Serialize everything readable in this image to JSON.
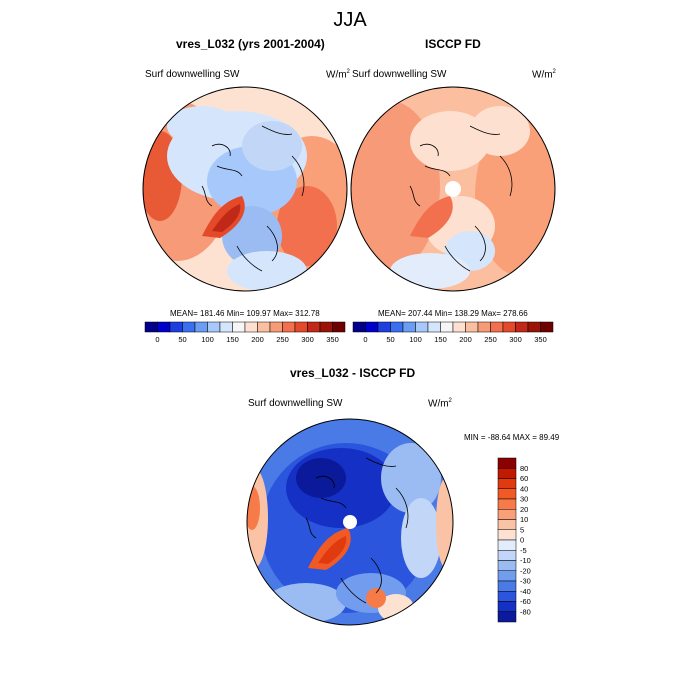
{
  "figure": {
    "season": "JJA",
    "units_base": "W/m",
    "units_exp": "2"
  },
  "panels": {
    "model": {
      "title": "vres_L032 (yrs 2001-2004)",
      "variable": "Surf downwelling SW",
      "stats_text": "MEAN= 181.46  Min= 109.97  Max= 312.78"
    },
    "obs": {
      "title": "ISCCP FD",
      "variable": "Surf downwelling SW",
      "stats_text": "MEAN= 207.44  Min= 138.29  Max= 278.66"
    },
    "diff": {
      "title": "vres_L032 - ISCCP FD",
      "variable": "Surf downwelling SW",
      "stats_text": "MIN = -88.64 MAX =  89.49"
    }
  },
  "chart_data": [
    {
      "type": "heatmap",
      "title": "vres_L032 (yrs 2001-2004)",
      "projection": "north polar stereographic",
      "variable": "Surf downwelling SW",
      "units": "W/m2",
      "stats": {
        "mean": 181.46,
        "min": 109.97,
        "max": 312.78
      },
      "colorbar": {
        "levels": [
          0,
          25,
          50,
          75,
          100,
          125,
          150,
          175,
          200,
          225,
          250,
          275,
          300,
          325,
          350
        ],
        "tick_labels": [
          "0",
          "50",
          "100",
          "150",
          "200",
          "250",
          "300",
          "350"
        ],
        "colors": [
          "#00008b",
          "#0000cd",
          "#1e3fe0",
          "#3a6ff0",
          "#6b9df5",
          "#a6c8fa",
          "#d5e6fc",
          "#f6f6f6",
          "#fde0d0",
          "#fbbfa0",
          "#f79a78",
          "#f2704d",
          "#e44a2a",
          "#c02818",
          "#9a1208",
          "#6f0000"
        ]
      }
    },
    {
      "type": "heatmap",
      "title": "ISCCP FD",
      "projection": "north polar stereographic",
      "variable": "Surf downwelling SW",
      "units": "W/m2",
      "stats": {
        "mean": 207.44,
        "min": 138.29,
        "max": 278.66
      },
      "colorbar": {
        "levels": [
          0,
          25,
          50,
          75,
          100,
          125,
          150,
          175,
          200,
          225,
          250,
          275,
          300,
          325,
          350
        ],
        "tick_labels": [
          "0",
          "50",
          "100",
          "150",
          "200",
          "250",
          "300",
          "350"
        ],
        "colors": [
          "#00008b",
          "#0000cd",
          "#1e3fe0",
          "#3a6ff0",
          "#6b9df5",
          "#a6c8fa",
          "#d5e6fc",
          "#f6f6f6",
          "#fde0d0",
          "#fbbfa0",
          "#f79a78",
          "#f2704d",
          "#e44a2a",
          "#c02818",
          "#9a1208",
          "#6f0000"
        ]
      }
    },
    {
      "type": "heatmap",
      "title": "vres_L032 - ISCCP FD",
      "projection": "north polar stereographic",
      "variable": "Surf downwelling SW",
      "units": "W/m2",
      "stats": {
        "min": -88.64,
        "max": 89.49
      },
      "colorbar": {
        "orientation": "vertical",
        "tick_labels": [
          "80",
          "60",
          "40",
          "30",
          "20",
          "10",
          "5",
          "0",
          "-5",
          "-10",
          "-20",
          "-30",
          "-40",
          "-60",
          "-80"
        ],
        "colors": [
          "#8b0000",
          "#c01a00",
          "#e03a10",
          "#f25a25",
          "#f77b48",
          "#f9a078",
          "#fbc3a6",
          "#fde2d2",
          "#e3ecfa",
          "#c2d6f7",
          "#9bbcf3",
          "#729ced",
          "#4a7ae6",
          "#2a55dc",
          "#1530c4",
          "#0a1a9a"
        ]
      }
    }
  ]
}
